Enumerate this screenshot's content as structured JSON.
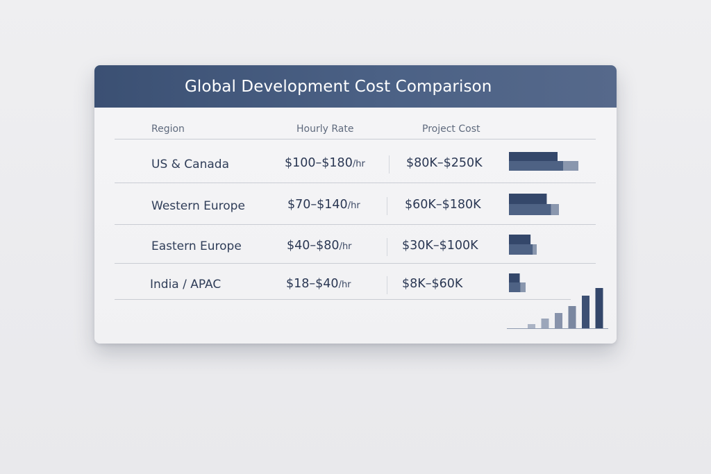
{
  "card": {
    "title": "Global Development Cost Comparison",
    "columns": {
      "region": "Region",
      "hourly": "Hourly Rate",
      "project": "Project Cost"
    },
    "rows": [
      {
        "region": "US & Canada",
        "hourly": "$100–$180",
        "hourly_unit": "/hr",
        "project": "$80K–$250K"
      },
      {
        "region": "Western Europe",
        "hourly": "$70–$140",
        "hourly_unit": "/hr",
        "project": "$60K–$180K"
      },
      {
        "region": "Eastern Europe",
        "hourly": "$40–$80",
        "hourly_unit": "/hr",
        "project": "$30K–$100K"
      },
      {
        "region": "India / APAC",
        "hourly": "$18–$40",
        "hourly_unit": "/hr",
        "project": "$8K–$60K"
      }
    ]
  },
  "chart_data": {
    "type": "bar",
    "orientation": "horizontal",
    "categories": [
      "US & Canada",
      "Western Europe",
      "Eastern Europe",
      "India / APAC"
    ],
    "series": [
      {
        "values_low": [
          100,
          70,
          40,
          18
        ],
        "values_high": [
          180,
          140,
          80,
          40
        ]
      },
      {
        "values_low": [
          80,
          60,
          30,
          8
        ],
        "values_high": [
          250,
          180,
          100,
          60
        ]
      }
    ],
    "colors": {
      "dark": "#34476a",
      "mid": "#4e6284",
      "light": "#8a97ae",
      "header": "#3f5478"
    },
    "decorative_trend": {
      "type": "bar",
      "values": [
        1,
        2,
        3,
        4,
        5,
        6
      ],
      "colors": [
        "#aab3c4",
        "#9ba6ba",
        "#8893ab",
        "#7a87a0",
        "#3d5073",
        "#33466a"
      ]
    }
  }
}
